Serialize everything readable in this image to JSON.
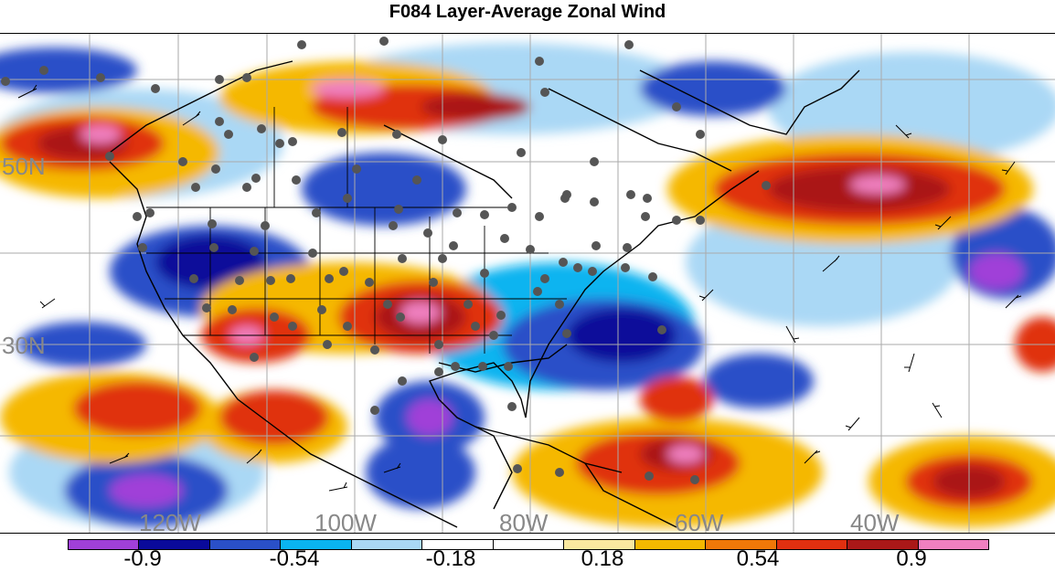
{
  "title": "F084 Layer-Average Zonal Wind",
  "latitude_labels": [
    "50N",
    "30N"
  ],
  "longitude_labels": [
    "120W",
    "100W",
    "80W",
    "60W",
    "40W"
  ],
  "colorbar": {
    "colors": [
      "#a040d8",
      "#0a0a9a",
      "#2a50c8",
      "#0ab4f0",
      "#aad8f5",
      "#ffffff",
      "#ffffff",
      "#fae8a0",
      "#f5b800",
      "#f07808",
      "#e03010",
      "#aa1818",
      "#f080c0"
    ],
    "tick_labels": [
      "-0.9",
      "-0.54",
      "-0.18",
      "0.18",
      "0.54",
      "0.9"
    ]
  }
}
